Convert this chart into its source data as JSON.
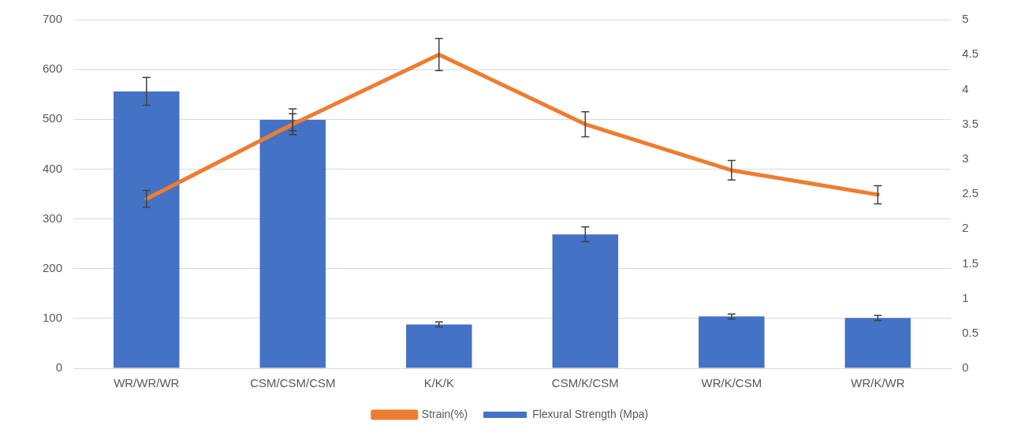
{
  "chart_data": {
    "type": "bar",
    "categories": [
      "WR/WR/WR",
      "CSM/CSM/CSM",
      "K/K/K",
      "CSM/K/CSM",
      "WR/K/CSM",
      "WR/K/WR"
    ],
    "series": [
      {
        "name": "Flexural Strength (Mpa)",
        "color": "#4472c4",
        "values": [
          556,
          499,
          88,
          269,
          104,
          101
        ],
        "errors": [
          28,
          22,
          5,
          15,
          5,
          5
        ]
      },
      {
        "name": "Strain(%)",
        "type": "line",
        "axis": "y2",
        "color": "#ed7d31",
        "values": [
          2.43,
          3.5,
          4.5,
          3.5,
          2.84,
          2.49
        ],
        "errors": [
          0.12,
          0.15,
          0.23,
          0.18,
          0.14,
          0.13
        ]
      }
    ],
    "ylim": [
      0,
      700
    ],
    "yticks": [
      0,
      100,
      200,
      300,
      400,
      500,
      600,
      700
    ],
    "y2lim": [
      0,
      5
    ],
    "y2ticks": [
      0,
      0.5,
      1,
      1.5,
      2,
      2.5,
      3,
      3.5,
      4,
      4.5,
      5
    ],
    "grid": "y",
    "legend": "bottom",
    "marker": "none",
    "line_style": "solid"
  }
}
